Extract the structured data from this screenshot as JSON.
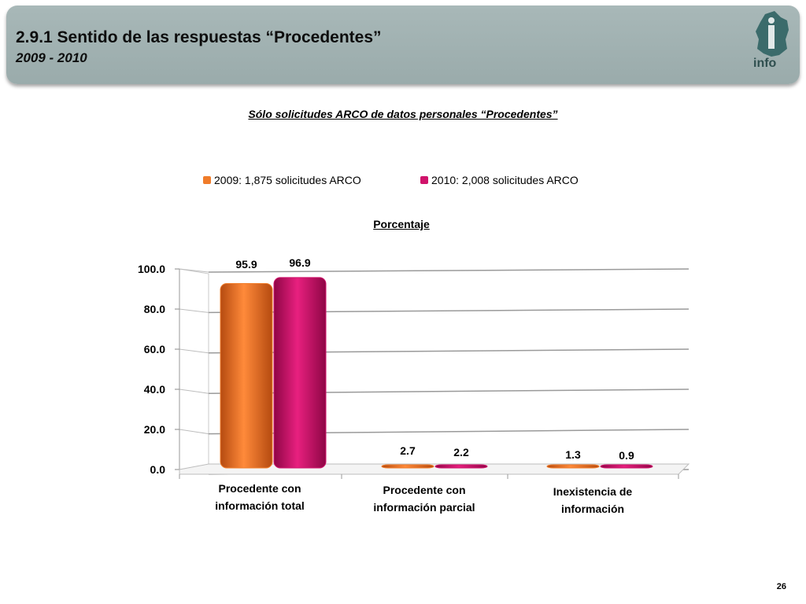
{
  "header": {
    "title": "2.9.1 Sentido de las respuestas “Procedentes”",
    "subtitle": "2009 - 2010",
    "logo_text": "info"
  },
  "page_number": "26",
  "colors": {
    "series_2009": "#f07c2a",
    "series_2010": "#d0136b",
    "header_bg": "#9fb0b0"
  },
  "chart_data": {
    "type": "bar",
    "title": "Sólo solicitudes ARCO de datos personales “Procedentes”",
    "ylabel": "Porcentaje",
    "xlabel": "",
    "categories": [
      "Procedente con información total",
      "Procedente con información parcial",
      "Inexistencia de información"
    ],
    "category_lines": [
      [
        "Procedente con",
        "información total"
      ],
      [
        "Procedente con",
        "información parcial"
      ],
      [
        "Inexistencia de",
        "información"
      ]
    ],
    "series": [
      {
        "name": "2009: 1,875 solicitudes ARCO",
        "values": [
          95.9,
          2.7,
          1.3
        ],
        "labels": [
          "95.9",
          "2.7",
          "1.3"
        ],
        "color": "#f07c2a"
      },
      {
        "name": "2010: 2,008 solicitudes ARCO",
        "values": [
          96.9,
          2.2,
          0.9
        ],
        "labels": [
          "96.9",
          "2.2",
          "0.9"
        ],
        "color": "#d0136b"
      }
    ],
    "yticks": [
      "0.0",
      "20.0",
      "40.0",
      "60.0",
      "80.0",
      "100.0"
    ],
    "ylim": [
      0,
      100
    ],
    "grid": true,
    "legend_position": "top"
  }
}
